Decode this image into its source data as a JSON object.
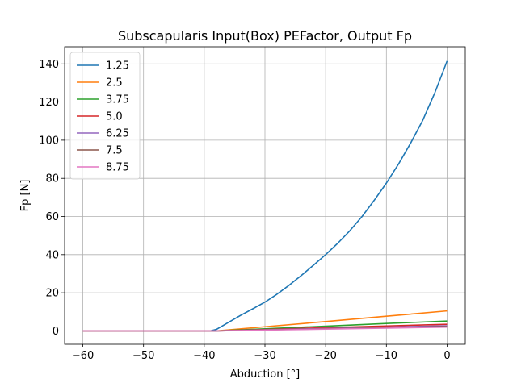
{
  "chart_data": {
    "type": "line",
    "title": "Subscapularis Input(Box) PEFactor, Output Fp",
    "xlabel": "Abduction [°]",
    "ylabel": "Fp [N]",
    "xlim": [
      -63,
      3
    ],
    "ylim": [
      -7,
      149
    ],
    "xticks": [
      -60,
      -50,
      -40,
      -30,
      -20,
      -10,
      0
    ],
    "xtick_labels": [
      "−60",
      "−50",
      "−40",
      "−30",
      "−20",
      "−10",
      "0"
    ],
    "yticks": [
      0,
      20,
      40,
      60,
      80,
      100,
      120,
      140
    ],
    "ytick_labels": [
      "0",
      "20",
      "40",
      "60",
      "80",
      "100",
      "120",
      "140"
    ],
    "grid": true,
    "legend_position": "top-left",
    "series": [
      {
        "name": "1.25",
        "color": "#1f77b4",
        "x": [
          -60,
          -50,
          -40,
          -39,
          -38,
          -36,
          -34,
          -32,
          -30,
          -28,
          -26,
          -24,
          -22,
          -20,
          -18,
          -16,
          -14,
          -12,
          -10,
          -8,
          -6,
          -4,
          -2,
          0
        ],
        "y": [
          0,
          0,
          0,
          0,
          0.8,
          4.5,
          8.2,
          11.6,
          15.1,
          19.3,
          24,
          29.1,
          34.5,
          40,
          46,
          52.6,
          60,
          68.5,
          77.5,
          87.5,
          98.5,
          110.5,
          125,
          141.5
        ]
      },
      {
        "name": "2.5",
        "color": "#ff7f0e",
        "x": [
          -60,
          -50,
          -40,
          -38,
          -30,
          -20,
          -10,
          0
        ],
        "y": [
          0,
          0,
          0,
          0,
          2.2,
          4.9,
          7.7,
          10.5
        ]
      },
      {
        "name": "3.75",
        "color": "#2ca02c",
        "x": [
          -60,
          -50,
          -40,
          -38,
          -30,
          -20,
          -10,
          0
        ],
        "y": [
          0,
          0,
          0,
          0,
          1.1,
          2.5,
          3.9,
          5.2
        ]
      },
      {
        "name": "5.0",
        "color": "#d62728",
        "x": [
          -60,
          -50,
          -40,
          -38,
          -30,
          -20,
          -10,
          0
        ],
        "y": [
          0,
          0,
          0,
          0,
          0.75,
          1.7,
          2.6,
          3.5
        ]
      },
      {
        "name": "6.25",
        "color": "#9467bd",
        "x": [
          -60,
          -50,
          -40,
          -38,
          -30,
          -20,
          -10,
          0
        ],
        "y": [
          0,
          0,
          0,
          0,
          0.6,
          1.3,
          2,
          2.7
        ]
      },
      {
        "name": "7.5",
        "color": "#8c564b",
        "x": [
          -60,
          -50,
          -40,
          -38,
          -30,
          -20,
          -10,
          0
        ],
        "y": [
          0,
          0,
          0,
          0,
          0.5,
          1.1,
          1.7,
          2.3
        ]
      },
      {
        "name": "8.75",
        "color": "#e377c2",
        "x": [
          -60,
          -50,
          -40,
          -38,
          -30,
          -20,
          -10,
          0
        ],
        "y": [
          0,
          0,
          0,
          0,
          0.45,
          0.95,
          1.45,
          2
        ]
      }
    ]
  }
}
